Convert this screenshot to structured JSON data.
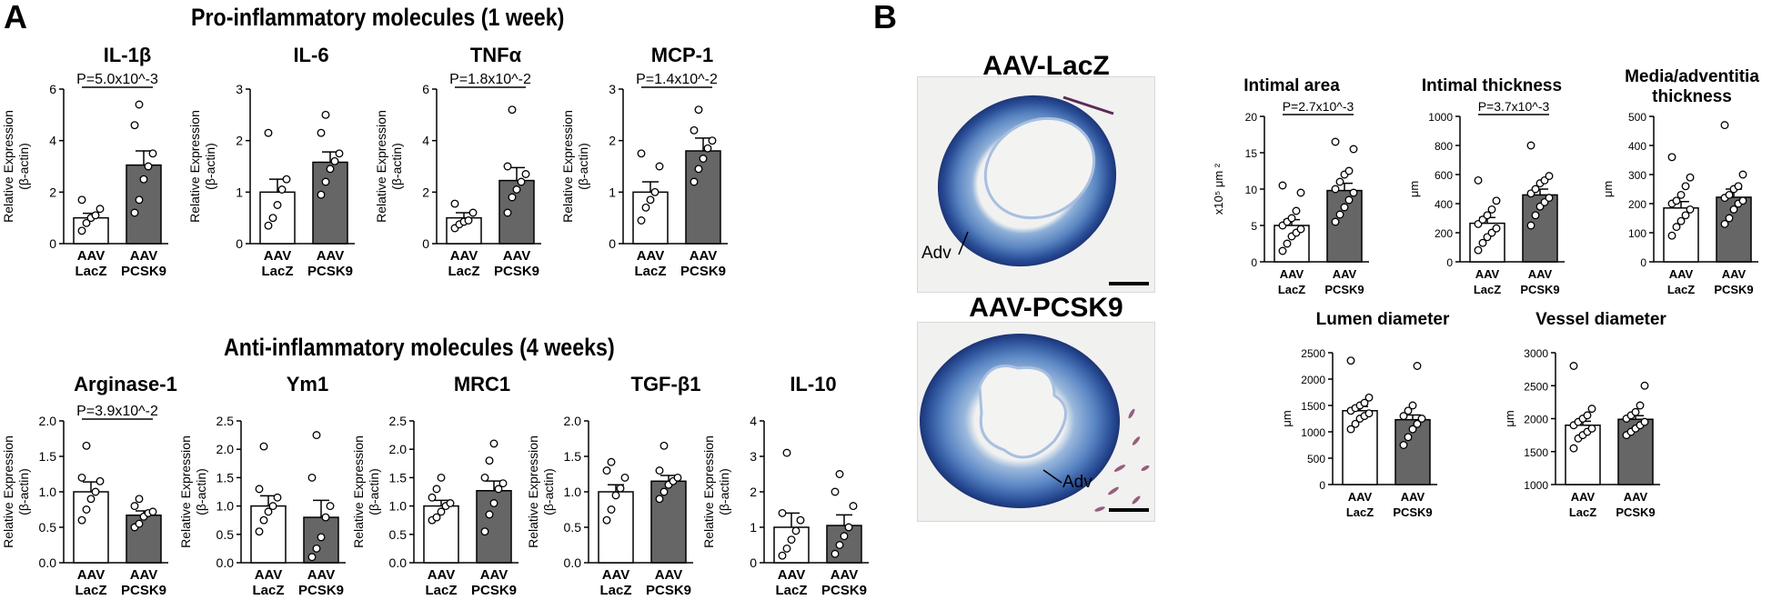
{
  "panel_a_label": "A",
  "panel_b_label": "B",
  "pro_title": "Pro-inflammatory molecules (1 week)",
  "anti_title": "Anti-inflammatory molecules (4 weeks)",
  "histology": {
    "top_title": "AAV-LacZ",
    "bottom_title": "AAV-PCSK9",
    "top_adv": "Adv",
    "bottom_adv": "Adv"
  },
  "colors": {
    "pcsk9_bar": "#666666",
    "lacz_bar": "#ffffff",
    "stain_blue": "#2f5fae"
  },
  "chart_data": [
    {
      "id": "il1b",
      "type": "bar",
      "title": "IL-1β",
      "ylabel": "Relative Expression (β-actin)",
      "categories": [
        "AAV LacZ",
        "AAV PCSK9"
      ],
      "values": [
        1.0,
        3.05
      ],
      "sem": [
        0.18,
        0.55
      ],
      "ylim": [
        0,
        6
      ],
      "ticks": [
        0,
        2,
        4,
        6
      ],
      "tick_labels": [
        "0",
        "2",
        "4",
        "6"
      ],
      "points": [
        [
          0.5,
          0.8,
          1.0,
          1.1,
          1.35,
          1.7
        ],
        [
          1.2,
          1.7,
          2.5,
          3.0,
          3.5,
          4.6,
          5.4
        ]
      ],
      "pvalue": "P=5.0x10^-3"
    },
    {
      "id": "il6",
      "type": "bar",
      "title": "IL-6",
      "ylabel": "Relative Expression (β-actin)",
      "categories": [
        "AAV LacZ",
        "AAV PCSK9"
      ],
      "values": [
        1.0,
        1.58
      ],
      "sem": [
        0.25,
        0.2
      ],
      "ylim": [
        0,
        3
      ],
      "ticks": [
        0,
        1,
        2,
        3
      ],
      "tick_labels": [
        "0",
        "1",
        "2",
        "3"
      ],
      "points": [
        [
          0.35,
          0.5,
          0.75,
          1.05,
          1.25,
          2.15
        ],
        [
          0.95,
          1.2,
          1.45,
          1.6,
          1.75,
          2.15,
          2.5
        ]
      ]
    },
    {
      "id": "tnfa",
      "type": "bar",
      "title": "TNFα",
      "ylabel": "Relative Expression (β-actin)",
      "categories": [
        "AAV LacZ",
        "AAV PCSK9"
      ],
      "values": [
        1.0,
        2.45
      ],
      "sem": [
        0.2,
        0.5
      ],
      "ylim": [
        0,
        6
      ],
      "ticks": [
        0,
        2,
        4,
        6
      ],
      "tick_labels": [
        "0",
        "2",
        "4",
        "6"
      ],
      "points": [
        [
          0.6,
          0.75,
          0.85,
          0.9,
          1.2,
          1.55
        ],
        [
          1.2,
          1.8,
          2.1,
          2.4,
          2.7,
          3.0,
          5.2
        ]
      ],
      "pvalue": "P=1.8x10^-2"
    },
    {
      "id": "mcp1",
      "type": "bar",
      "title": "MCP-1",
      "ylabel": "Relative Expression (β-actin)",
      "categories": [
        "AAV LacZ",
        "AAV PCSK9"
      ],
      "values": [
        1.0,
        1.8
      ],
      "sem": [
        0.2,
        0.25
      ],
      "ylim": [
        0,
        3
      ],
      "ticks": [
        0,
        1,
        2,
        3
      ],
      "tick_labels": [
        "0",
        "1",
        "2",
        "3"
      ],
      "points": [
        [
          0.45,
          0.7,
          0.85,
          1.0,
          1.5,
          1.75
        ],
        [
          1.2,
          1.45,
          1.65,
          1.85,
          2.0,
          2.2,
          2.6
        ]
      ],
      "pvalue": "P=1.4x10^-2"
    },
    {
      "id": "arg1",
      "type": "bar",
      "title": "Arginase-1",
      "ylabel": "Relative Expression (β-actin)",
      "categories": [
        "AAV LacZ",
        "AAV PCSK9"
      ],
      "values": [
        1.0,
        0.67
      ],
      "sem": [
        0.14,
        0.06
      ],
      "ylim": [
        0,
        2.0
      ],
      "ticks": [
        0,
        0.5,
        1.0,
        1.5,
        2.0
      ],
      "tick_labels": [
        "0.0",
        "0.5",
        "1.0",
        "1.5",
        "2.0"
      ],
      "points": [
        [
          0.6,
          0.75,
          0.9,
          1.0,
          1.15,
          1.2,
          1.65
        ],
        [
          0.5,
          0.55,
          0.65,
          0.7,
          0.72,
          0.8,
          0.9
        ]
      ],
      "pvalue": "P=3.9x10^-2"
    },
    {
      "id": "ym1",
      "type": "bar",
      "title": "Ym1",
      "ylabel": "Relative Expression (β-actin)",
      "categories": [
        "AAV LacZ",
        "AAV PCSK9"
      ],
      "values": [
        1.0,
        0.8
      ],
      "sem": [
        0.18,
        0.3
      ],
      "ylim": [
        0,
        2.5
      ],
      "ticks": [
        0,
        0.5,
        1.0,
        1.5,
        2.0,
        2.5
      ],
      "tick_labels": [
        "0.0",
        "0.5",
        "1.0",
        "1.5",
        "2.0",
        "2.5"
      ],
      "points": [
        [
          0.55,
          0.75,
          0.9,
          1.0,
          1.15,
          1.3,
          2.05
        ],
        [
          0.1,
          0.25,
          0.45,
          0.8,
          1.0,
          1.5,
          2.25
        ]
      ]
    },
    {
      "id": "mrc1",
      "type": "bar",
      "title": "MRC1",
      "ylabel": "Relative Expression (β-actin)",
      "categories": [
        "AAV LacZ",
        "AAV PCSK9"
      ],
      "values": [
        1.0,
        1.27
      ],
      "sem": [
        0.1,
        0.17
      ],
      "ylim": [
        0,
        2.5
      ],
      "ticks": [
        0,
        0.5,
        1.0,
        1.5,
        2.0,
        2.5
      ],
      "tick_labels": [
        "0.0",
        "0.5",
        "1.0",
        "1.5",
        "2.0",
        "2.5"
      ],
      "points": [
        [
          0.75,
          0.8,
          0.9,
          1.0,
          1.05,
          1.15,
          1.3,
          1.5
        ],
        [
          0.55,
          0.85,
          1.05,
          1.3,
          1.4,
          1.5,
          1.8,
          2.1
        ]
      ]
    },
    {
      "id": "tgfb1",
      "type": "bar",
      "title": "TGF-β1",
      "ylabel": "Relative Expression (β-actin)",
      "categories": [
        "AAV LacZ",
        "AAV PCSK9"
      ],
      "values": [
        1.0,
        1.15
      ],
      "sem": [
        0.1,
        0.08
      ],
      "ylim": [
        0,
        2.0
      ],
      "ticks": [
        0,
        0.5,
        1.0,
        1.5,
        2.0
      ],
      "tick_labels": [
        "0.0",
        "0.5",
        "1.0",
        "1.5",
        "2.0"
      ],
      "points": [
        [
          0.6,
          0.75,
          0.95,
          1.05,
          1.2,
          1.3,
          1.42
        ],
        [
          0.9,
          1.0,
          1.1,
          1.15,
          1.2,
          1.3,
          1.65
        ]
      ]
    },
    {
      "id": "il10",
      "type": "bar",
      "title": "IL-10",
      "ylabel": "Relative Expression (β-actin)",
      "categories": [
        "AAV LacZ",
        "AAV PCSK9"
      ],
      "values": [
        1.0,
        1.05
      ],
      "sem": [
        0.4,
        0.3
      ],
      "ylim": [
        0,
        4
      ],
      "ticks": [
        0,
        1,
        2,
        3,
        4
      ],
      "tick_labels": [
        "0",
        "1",
        "2",
        "3",
        "4"
      ],
      "points": [
        [
          0.2,
          0.4,
          0.65,
          0.9,
          1.2,
          1.4,
          3.1
        ],
        [
          0.25,
          0.5,
          0.75,
          1.0,
          1.6,
          2.0,
          2.5
        ]
      ]
    },
    {
      "id": "intimal_area",
      "type": "bar",
      "title": "Intimal area",
      "ylabel": "x10⁵ μm ²",
      "categories": [
        "AAV LacZ",
        "AAV PCSK9"
      ],
      "values": [
        5.0,
        9.8
      ],
      "sem": [
        0.8,
        1.0
      ],
      "ylim": [
        0,
        20
      ],
      "ticks": [
        0,
        5,
        10,
        15,
        20
      ],
      "tick_labels": [
        "0",
        "5",
        "10",
        "15",
        "20"
      ],
      "points": [
        [
          1.5,
          2.5,
          3.5,
          4.0,
          4.5,
          5.0,
          5.5,
          6.0,
          7.0,
          9.5,
          10.5
        ],
        [
          5.5,
          6.5,
          7.5,
          8.5,
          9.5,
          10.0,
          11.0,
          12.0,
          12.5,
          15.5,
          16.5
        ]
      ],
      "pvalue": "P=2.7x10^-3"
    },
    {
      "id": "intimal_thickness",
      "type": "bar",
      "title": "Intimal thickness",
      "ylabel": "μm",
      "categories": [
        "AAV LacZ",
        "AAV PCSK9"
      ],
      "values": [
        265,
        460
      ],
      "sem": [
        40,
        40
      ],
      "ylim": [
        0,
        1000
      ],
      "ticks": [
        0,
        200,
        400,
        600,
        800,
        1000
      ],
      "tick_labels": [
        "0",
        "200",
        "400",
        "600",
        "800",
        "1000"
      ],
      "points": [
        [
          80,
          130,
          170,
          200,
          230,
          260,
          290,
          320,
          360,
          420,
          560
        ],
        [
          250,
          320,
          380,
          410,
          440,
          470,
          500,
          540,
          560,
          590,
          800
        ]
      ],
      "pvalue": "P=3.7x10^-3"
    },
    {
      "id": "media_adventitia",
      "type": "bar",
      "title": "Media/adventitia thickness",
      "ylabel": "μm",
      "categories": [
        "AAV LacZ",
        "AAV PCSK9"
      ],
      "values": [
        185,
        222
      ],
      "sem": [
        22,
        28
      ],
      "ylim": [
        0,
        500
      ],
      "ticks": [
        0,
        100,
        200,
        300,
        400,
        500
      ],
      "tick_labels": [
        "0",
        "100",
        "200",
        "300",
        "400",
        "500"
      ],
      "points": [
        [
          90,
          120,
          140,
          160,
          180,
          200,
          210,
          230,
          260,
          290,
          360
        ],
        [
          130,
          150,
          180,
          200,
          210,
          220,
          230,
          250,
          260,
          300,
          470
        ]
      ]
    },
    {
      "id": "lumen_diameter",
      "type": "bar",
      "title": "Lumen diameter",
      "ylabel": "μm",
      "categories": [
        "AAV LacZ",
        "AAV PCSK9"
      ],
      "values": [
        1400,
        1230
      ],
      "sem": [
        80,
        90
      ],
      "ylim": [
        0,
        2500
      ],
      "ticks": [
        0,
        500,
        1000,
        1500,
        2000,
        2500
      ],
      "tick_labels": [
        "0",
        "500",
        "1000",
        "1500",
        "2000",
        "2500"
      ],
      "points": [
        [
          1050,
          1150,
          1250,
          1300,
          1350,
          1400,
          1450,
          1500,
          1550,
          1650,
          2350
        ],
        [
          750,
          900,
          1050,
          1150,
          1250,
          1300,
          1400,
          1500,
          2250
        ]
      ]
    },
    {
      "id": "vessel_diameter",
      "type": "bar",
      "title": "Vessel diameter",
      "ylabel": "μm",
      "categories": [
        "AAV LacZ",
        "AAV PCSK9"
      ],
      "values": [
        1900,
        1990
      ],
      "sem": [
        60,
        55
      ],
      "ylim": [
        1000,
        3000
      ],
      "ticks": [
        1000,
        1500,
        2000,
        2500,
        3000
      ],
      "tick_labels": [
        "1000",
        "1500",
        "2000",
        "2500",
        "3000"
      ],
      "points": [
        [
          1550,
          1700,
          1750,
          1800,
          1850,
          1900,
          1950,
          2000,
          2050,
          2150,
          2800
        ],
        [
          1750,
          1800,
          1850,
          1900,
          1950,
          2000,
          2050,
          2100,
          2200,
          2500
        ]
      ]
    }
  ]
}
